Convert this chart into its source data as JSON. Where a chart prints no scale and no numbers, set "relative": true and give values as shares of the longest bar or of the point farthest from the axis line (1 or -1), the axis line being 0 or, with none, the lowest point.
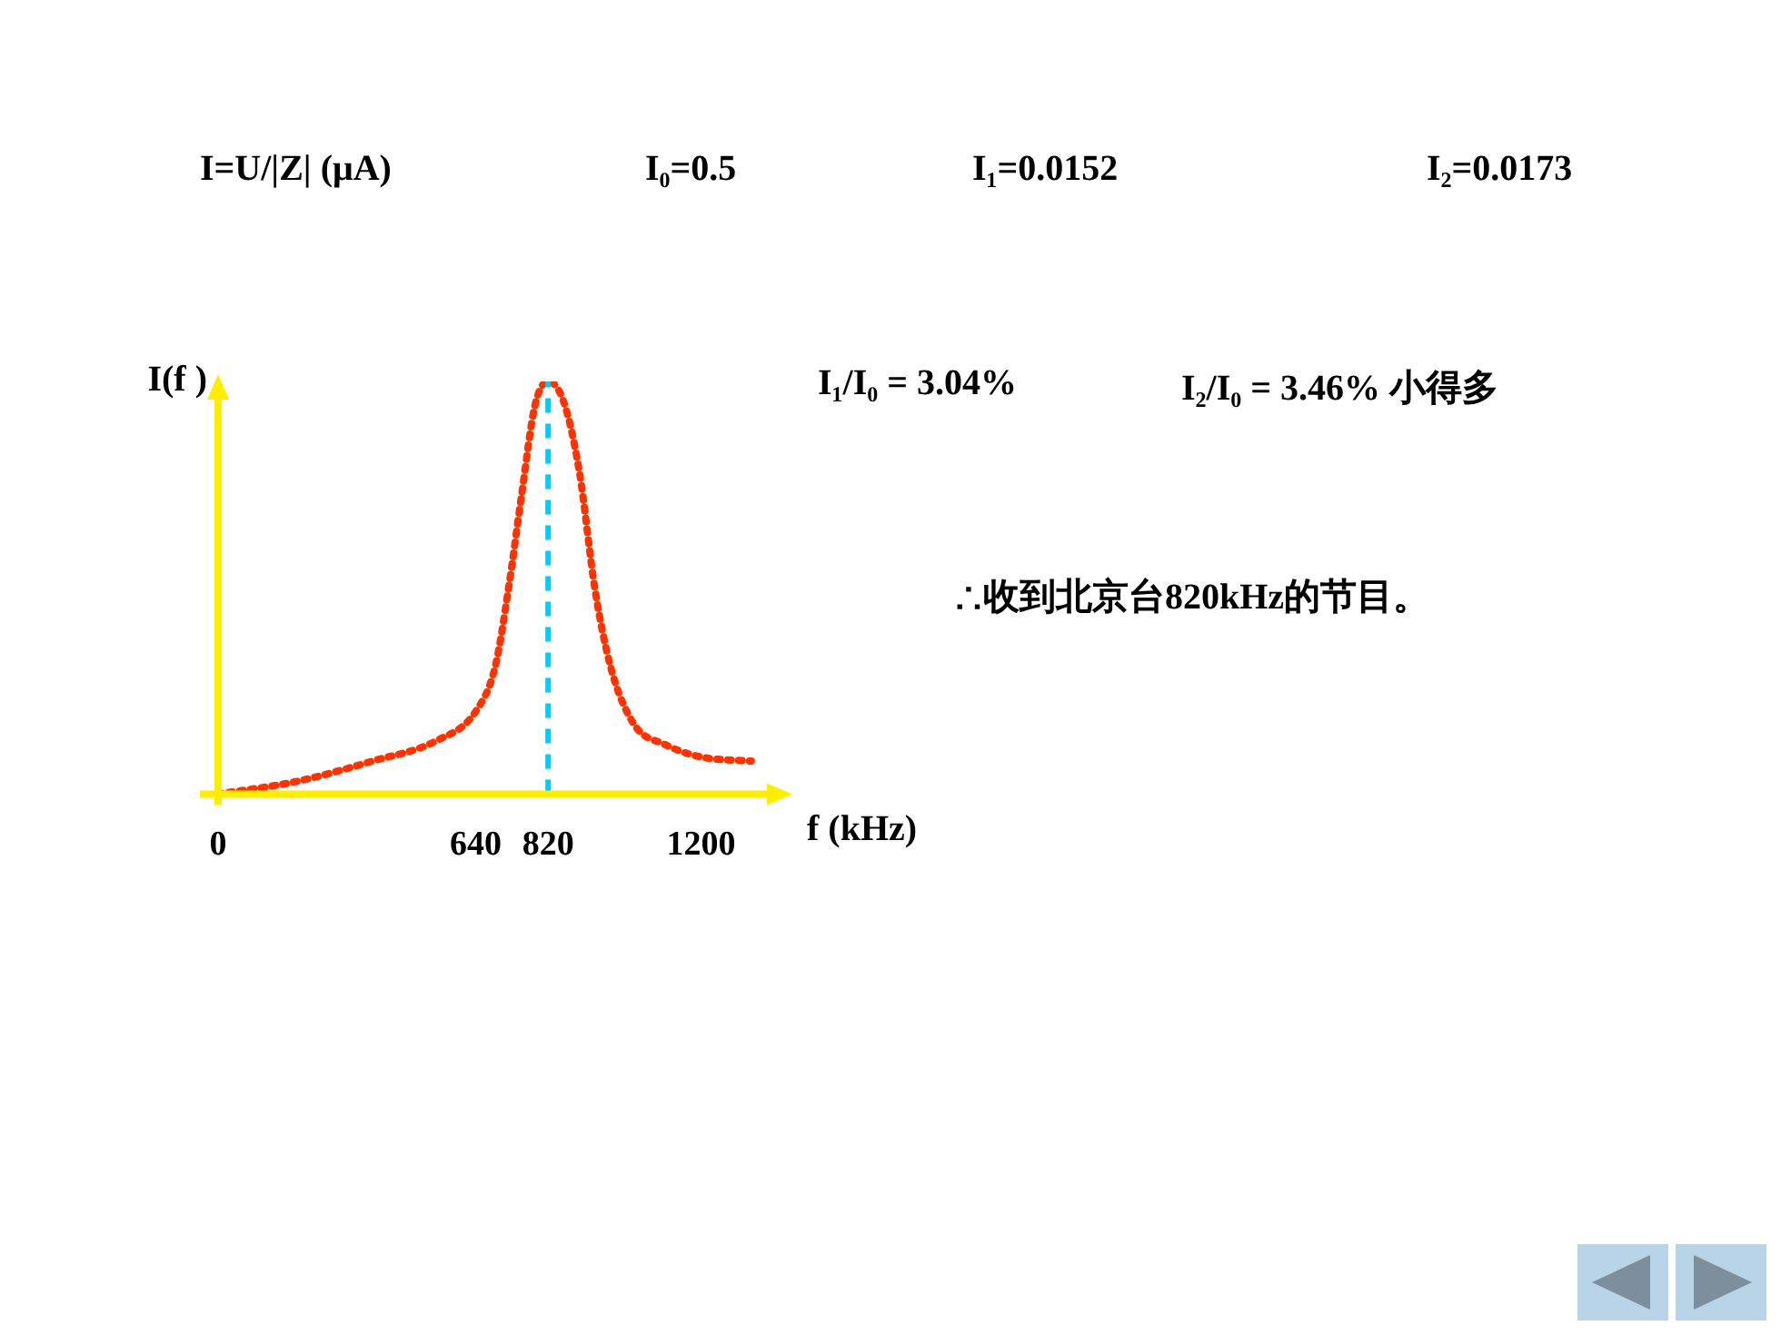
{
  "chart_data": {
    "type": "line",
    "relative": true,
    "xlabel": "f (kHz)",
    "ylabel": "I(f )",
    "xlim": [
      0,
      1400
    ],
    "xticks": [
      0,
      640,
      820,
      1200
    ],
    "series": [
      {
        "color": "#ff3300",
        "x": [
          0,
          192,
          384,
          544,
          640,
          689,
          722,
          755,
          787,
          820,
          859,
          898,
          936,
          975,
          1033,
          1111,
          1200,
          1325
        ],
        "values": [
          0,
          0.03,
          0.08,
          0.13,
          0.2,
          0.31,
          0.5,
          0.73,
          0.94,
          1,
          0.95,
          0.78,
          0.5,
          0.31,
          0.17,
          0.12,
          0.09,
          0.08
        ]
      }
    ],
    "line_style": "dotted",
    "marker": "none",
    "grid": false,
    "legend": false,
    "ref_lines": [
      {
        "axis": "x",
        "value": 820,
        "color": "#00ccff",
        "line_style": "dashed"
      }
    ],
    "annotations": [
      "I=U/|Z| (μA)",
      "I₀=0.5",
      "I₁=0.0152",
      "I₂=0.0173",
      "I₁/I₀ = 3.04%",
      "I₂/I₀ = 3.46%  小得多",
      "∴收到北京台820kHz的节目。"
    ]
  }
}
